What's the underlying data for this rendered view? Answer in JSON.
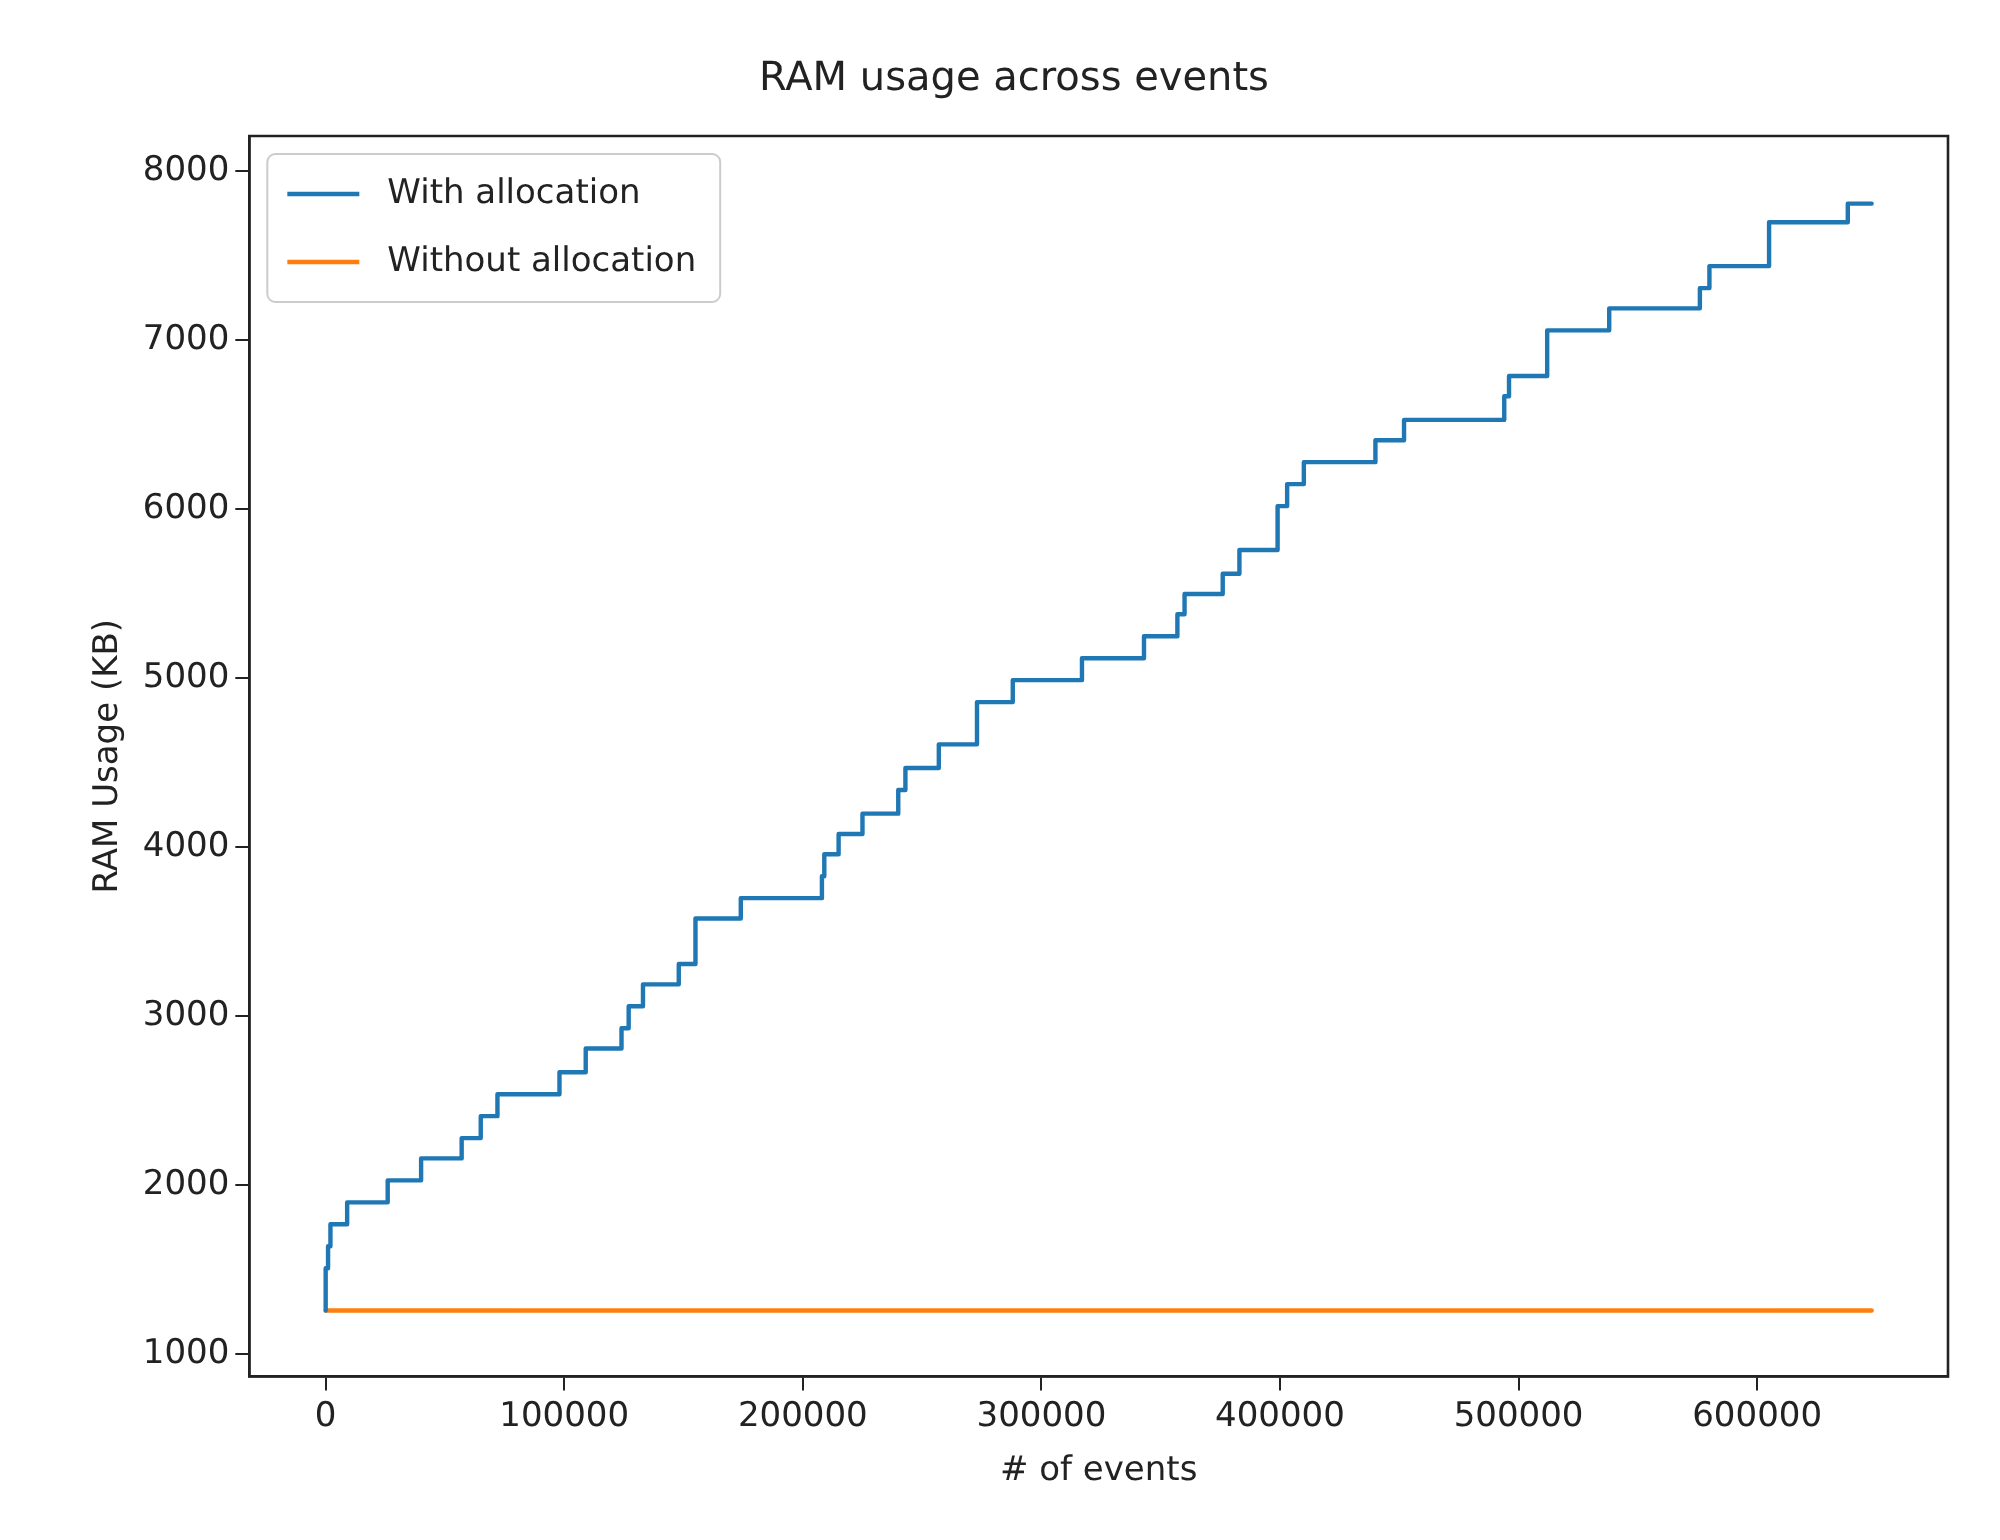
{
  "chart_data": {
    "type": "step",
    "title": "RAM usage across events",
    "xlabel": "# of events",
    "ylabel": "RAM Usage (KB)",
    "xlim": [
      -32000,
      680000
    ],
    "xticks": [
      0,
      100000,
      200000,
      300000,
      400000,
      500000,
      600000
    ],
    "ylim": [
      870,
      8210
    ],
    "yticks": [
      1000,
      2000,
      3000,
      4000,
      5000,
      6000,
      7000,
      8000
    ],
    "grid": false,
    "legend": "top left",
    "marker": "none",
    "line_style": "solid",
    "series": [
      {
        "name": "With allocation",
        "color": "#1f77b4",
        "x": [
          0,
          1000,
          2000,
          9000,
          26000,
          40000,
          57000,
          65000,
          72000,
          98000,
          109000,
          124000,
          127000,
          133000,
          148000,
          155000,
          174000,
          208000,
          209000,
          215000,
          225000,
          240000,
          243000,
          257000,
          273000,
          288000,
          317000,
          343000,
          357000,
          360000,
          376000,
          383000,
          399000,
          403000,
          410000,
          440000,
          452000,
          494000,
          496000,
          512000,
          538000,
          576000,
          580000,
          605000,
          638000,
          648000
        ],
        "values": [
          1260,
          1510,
          1640,
          1770,
          1900,
          2030,
          2160,
          2280,
          2410,
          2540,
          2670,
          2810,
          2930,
          3060,
          3190,
          3310,
          3580,
          3700,
          3830,
          3960,
          4080,
          4200,
          4340,
          4470,
          4610,
          4860,
          4990,
          5120,
          5250,
          5380,
          5500,
          5620,
          5760,
          6020,
          6150,
          6280,
          6410,
          6530,
          6670,
          6790,
          7060,
          7190,
          7310,
          7440,
          7700,
          7810
        ]
      },
      {
        "name": "Without allocation",
        "color": "#ff7f0e",
        "x": [
          0,
          648000
        ],
        "values": [
          1260,
          1260
        ]
      }
    ]
  }
}
